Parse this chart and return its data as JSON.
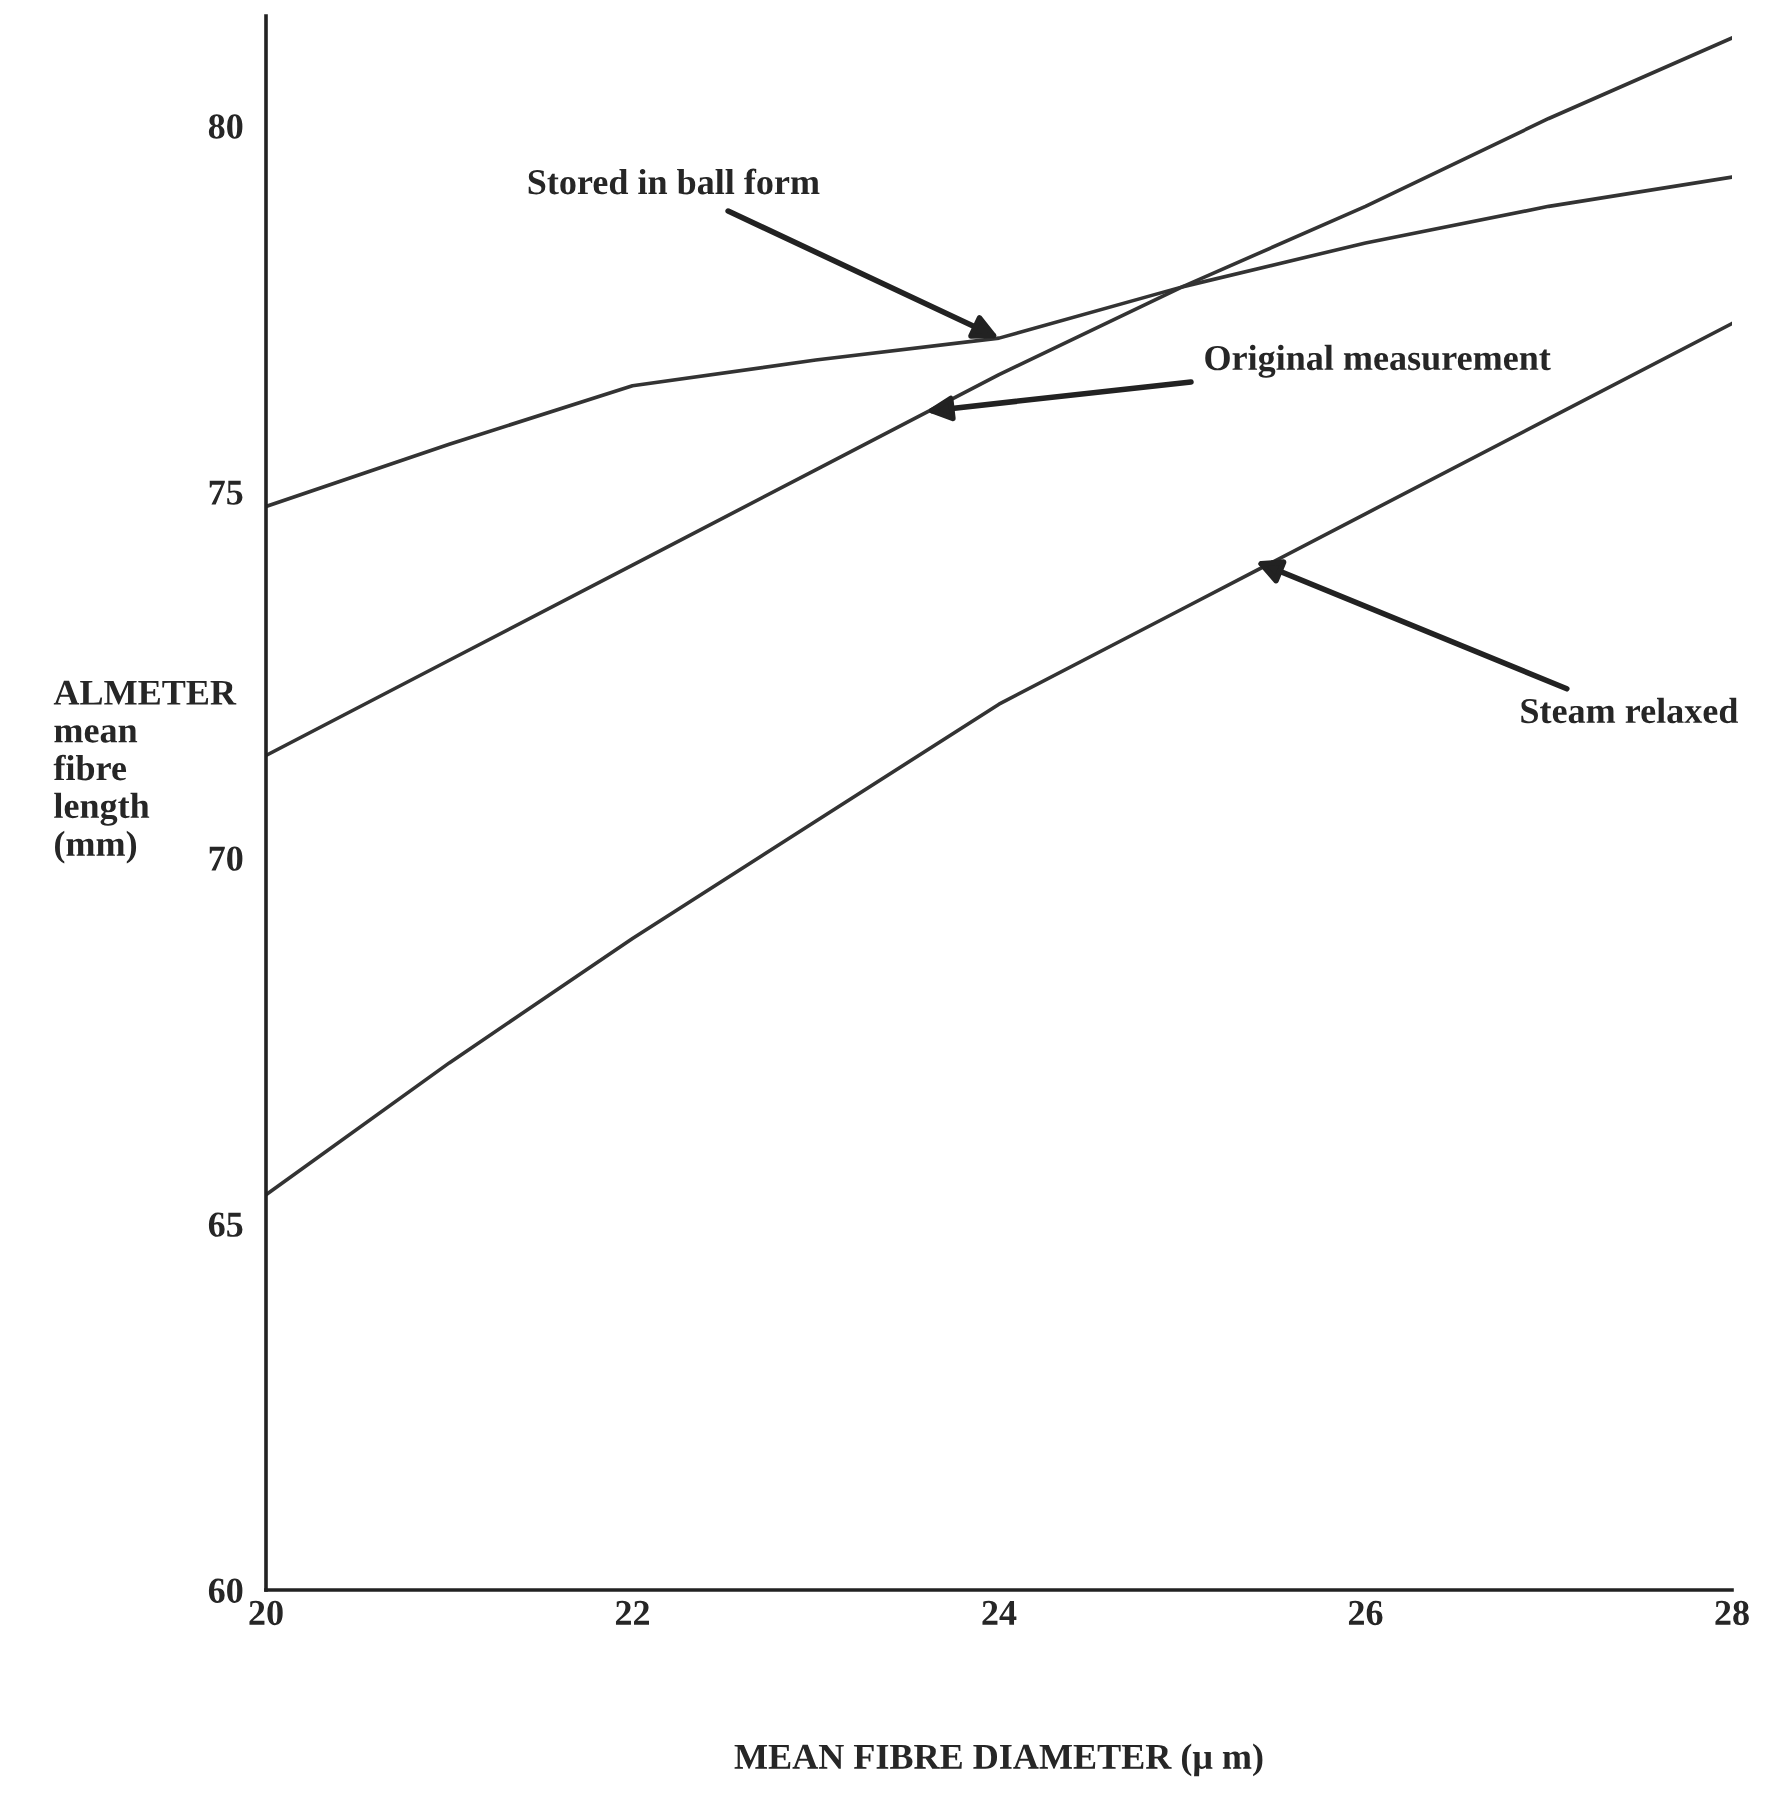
{
  "chart_data": {
    "type": "line",
    "xlabel": "MEAN FIBRE DIAMETER (μ m)",
    "ylabel": "ALMETER\nmean\nfibre\nlength\n(mm)",
    "x": [
      20,
      21,
      22,
      23,
      24,
      25,
      26,
      27,
      28
    ],
    "series": [
      {
        "color": "#333333",
        "values": [
          74.8,
          75.65,
          76.45,
          76.8,
          77.1,
          77.8,
          78.4,
          78.9,
          79.3
        ]
      },
      {
        "color": "#333333",
        "values": [
          71.4,
          72.7,
          74.0,
          75.3,
          76.6,
          77.8,
          78.9,
          80.1,
          81.2
        ]
      },
      {
        "color": "#333333",
        "values": [
          65.4,
          67.2,
          68.9,
          70.5,
          72.1,
          73.4,
          74.7,
          76.0,
          77.3
        ]
      }
    ],
    "annotations": [
      {
        "text": "Stored in ball form",
        "x": 24,
        "y": 77.1
      },
      {
        "text": "Original measurement",
        "x": 23.6,
        "y": 76.1
      },
      {
        "text": "Steam relaxed",
        "x": 25.4,
        "y": 74.05
      }
    ],
    "xlim": [
      20,
      28
    ],
    "ylim": [
      60,
      81.5
    ],
    "xticks": [
      20,
      22,
      24,
      26,
      28
    ],
    "yticks": [
      60,
      65,
      70,
      75,
      80
    ],
    "grid": false,
    "marker": "none",
    "line_style": "solid"
  }
}
